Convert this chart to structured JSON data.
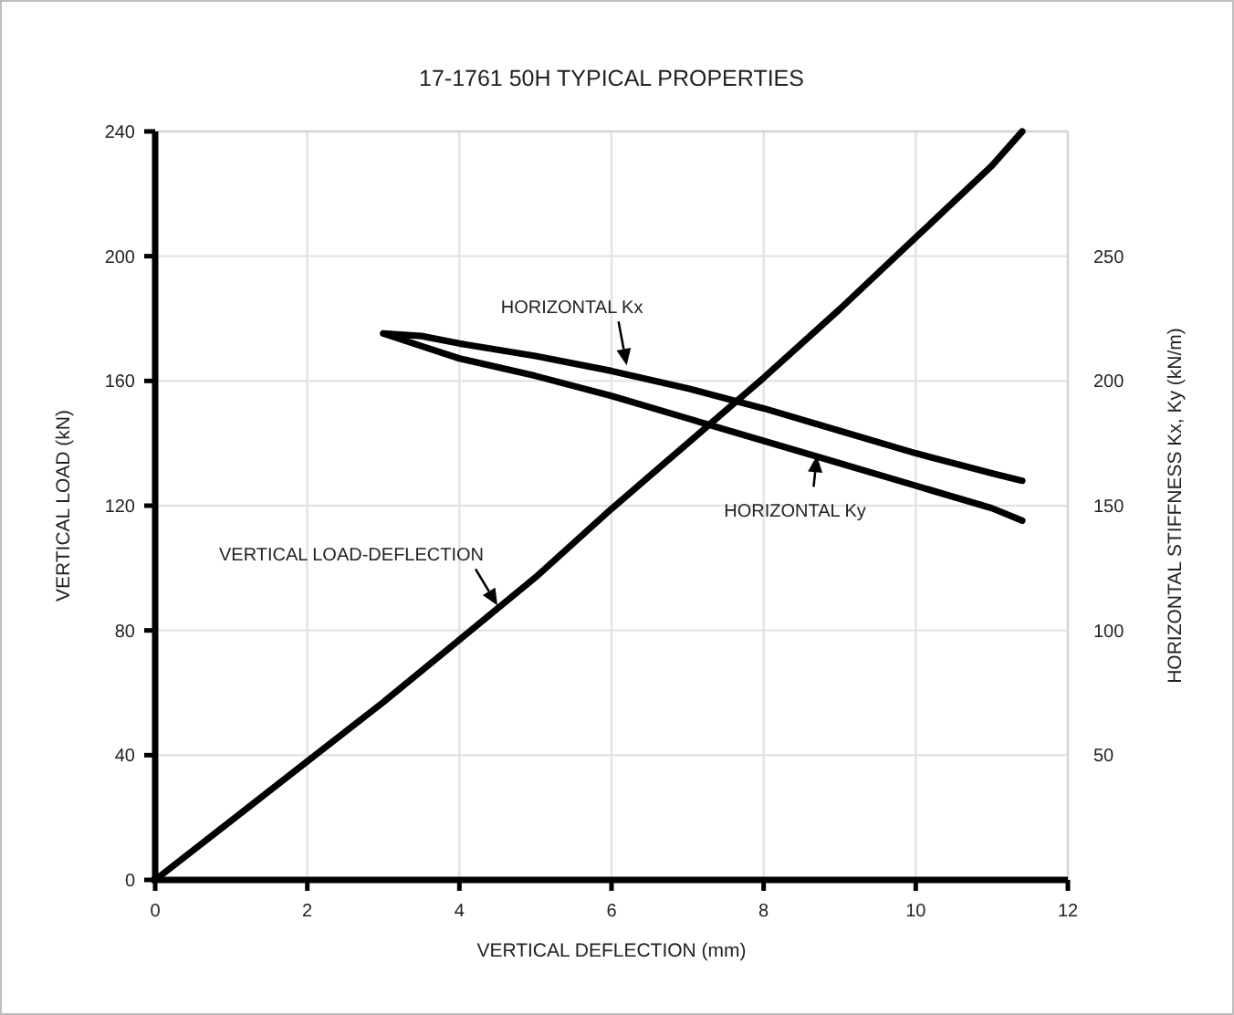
{
  "chart_data": {
    "type": "line",
    "title": "17-1761  50H  TYPICAL PROPERTIES",
    "xlabel": "VERTICAL DEFLECTION (mm)",
    "ylabel": "VERTICAL LOAD (kN)",
    "y2label": "HORIZONTAL STIFFNESS Kx, Ky (kN/m)",
    "xlim": [
      0,
      12
    ],
    "xticks": [
      0,
      2,
      4,
      6,
      8,
      10,
      12
    ],
    "ylim": [
      0,
      240
    ],
    "yticks": [
      0,
      40,
      80,
      120,
      160,
      200,
      240
    ],
    "y2lim": [
      0,
      300
    ],
    "y2ticks": [
      50,
      100,
      150,
      200,
      250
    ],
    "grid": true,
    "marker": "none",
    "line_style": "solid",
    "series": [
      {
        "color": "#000000",
        "x": [
          0,
          1,
          2,
          3,
          4,
          5,
          6,
          7,
          8,
          9,
          10,
          11,
          11.4
        ],
        "values": [
          0,
          19,
          38,
          57,
          77,
          97,
          119,
          140,
          161,
          183,
          206,
          229,
          240
        ]
      },
      {
        "color": "#000000",
        "axis": "y2",
        "x": [
          3,
          3.5,
          4,
          5,
          6,
          7,
          8,
          9,
          10,
          11,
          11.4
        ],
        "values": [
          219,
          218,
          215,
          210,
          204,
          197,
          189,
          180,
          171,
          163,
          160
        ]
      },
      {
        "color": "#000000",
        "axis": "y2",
        "x": [
          3,
          3.5,
          4,
          5,
          6,
          7,
          8,
          9,
          10,
          11,
          11.4
        ],
        "values": [
          219,
          214,
          209,
          202,
          194,
          185,
          176,
          167,
          158,
          149,
          144
        ]
      }
    ],
    "annotations": [
      {
        "text": "HORIZONTAL  Kx",
        "x": 6.2,
        "y": 165
      },
      {
        "text": "VERTICAL LOAD-DEFLECTION",
        "x": 4.5,
        "y": 88
      },
      {
        "text": "HORIZONTAL  Ky",
        "x": 8.7,
        "y": 136
      }
    ]
  }
}
